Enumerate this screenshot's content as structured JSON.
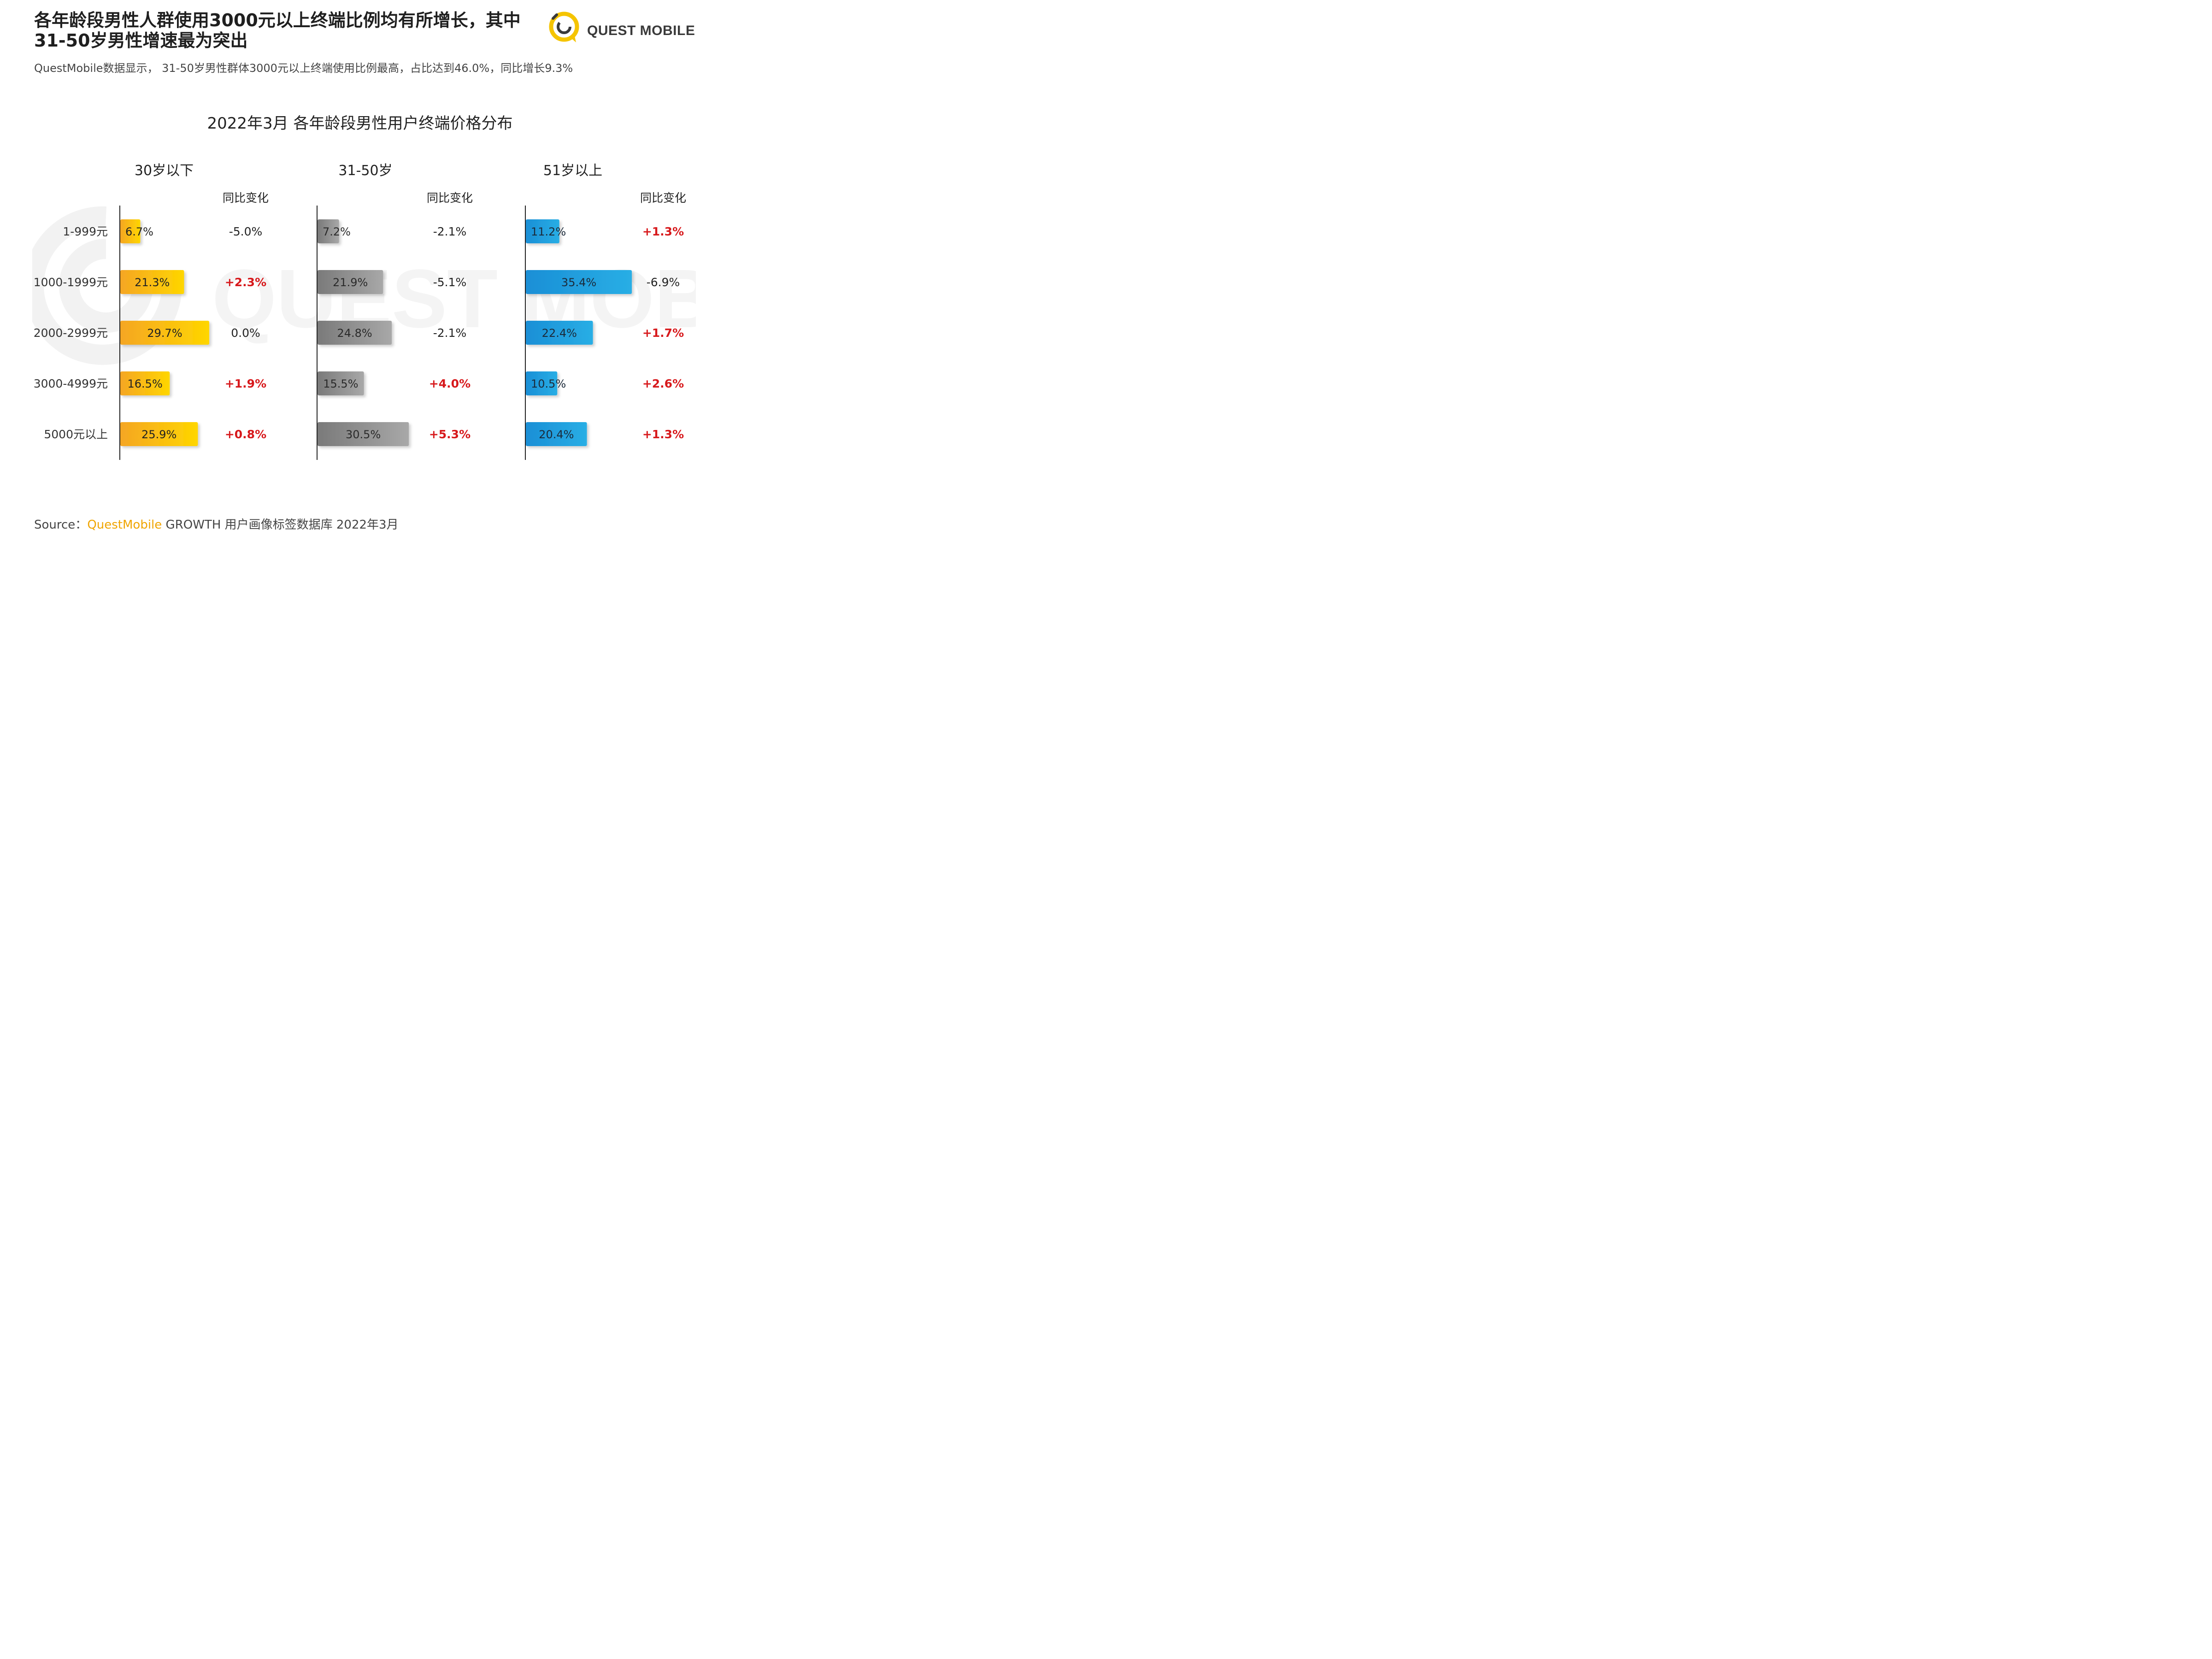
{
  "headline": "各年龄段男性人群使用3000元以上终端比例均有所增长，其中31-50岁男性增速最为突出",
  "subheadline": "QuestMobile数据显示， 31-50岁男性群体3000元以上终端使用比例最高，占比达到46.0%，同比增长9.3%",
  "brand": {
    "name": "QUEST MOBILE",
    "watermark": "QUEST MOBILE"
  },
  "colors": {
    "panel_30": [
      "#f5a623",
      "#ffd600"
    ],
    "panel_31_50": [
      "#7a7a7a",
      "#a8a8a8"
    ],
    "panel_51": [
      "#1a8fd6",
      "#29aee5"
    ],
    "increase": "#d7191c",
    "neutral": "#222222"
  },
  "chart_data": {
    "type": "bar",
    "orientation": "horizontal",
    "title": "2022年3月 各年龄段男性用户终端价格分布",
    "categories": [
      "1-999元",
      "1000-1999元",
      "2000-2999元",
      "3000-4999元",
      "5000元以上"
    ],
    "change_header": "同比变化",
    "panels": [
      {
        "name": "30岁以下",
        "values": [
          6.7,
          21.3,
          29.7,
          16.5,
          25.9
        ],
        "labels": [
          "6.7%",
          "21.3%",
          "29.7%",
          "16.5%",
          "25.9%"
        ],
        "changes": [
          "-5.0%",
          "+2.3%",
          "0.0%",
          "+1.9%",
          "+0.8%"
        ]
      },
      {
        "name": "31-50岁",
        "values": [
          7.2,
          21.9,
          24.8,
          15.5,
          30.5
        ],
        "labels": [
          "7.2%",
          "21.9%",
          "24.8%",
          "15.5%",
          "30.5%"
        ],
        "changes": [
          "-2.1%",
          "-5.1%",
          "-2.1%",
          "+4.0%",
          "+5.3%"
        ]
      },
      {
        "name": "51岁以上",
        "values": [
          11.2,
          35.4,
          22.4,
          10.5,
          20.4
        ],
        "labels": [
          "11.2%",
          "35.4%",
          "22.4%",
          "10.5%",
          "20.4%"
        ],
        "changes": [
          "+1.3%",
          "-6.9%",
          "+1.7%",
          "+2.6%",
          "+1.3%"
        ]
      }
    ]
  },
  "source": {
    "prefix": "Source：",
    "brand": "QuestMobile",
    "rest": " GROWTH 用户画像标签数据库 2022年3月"
  }
}
